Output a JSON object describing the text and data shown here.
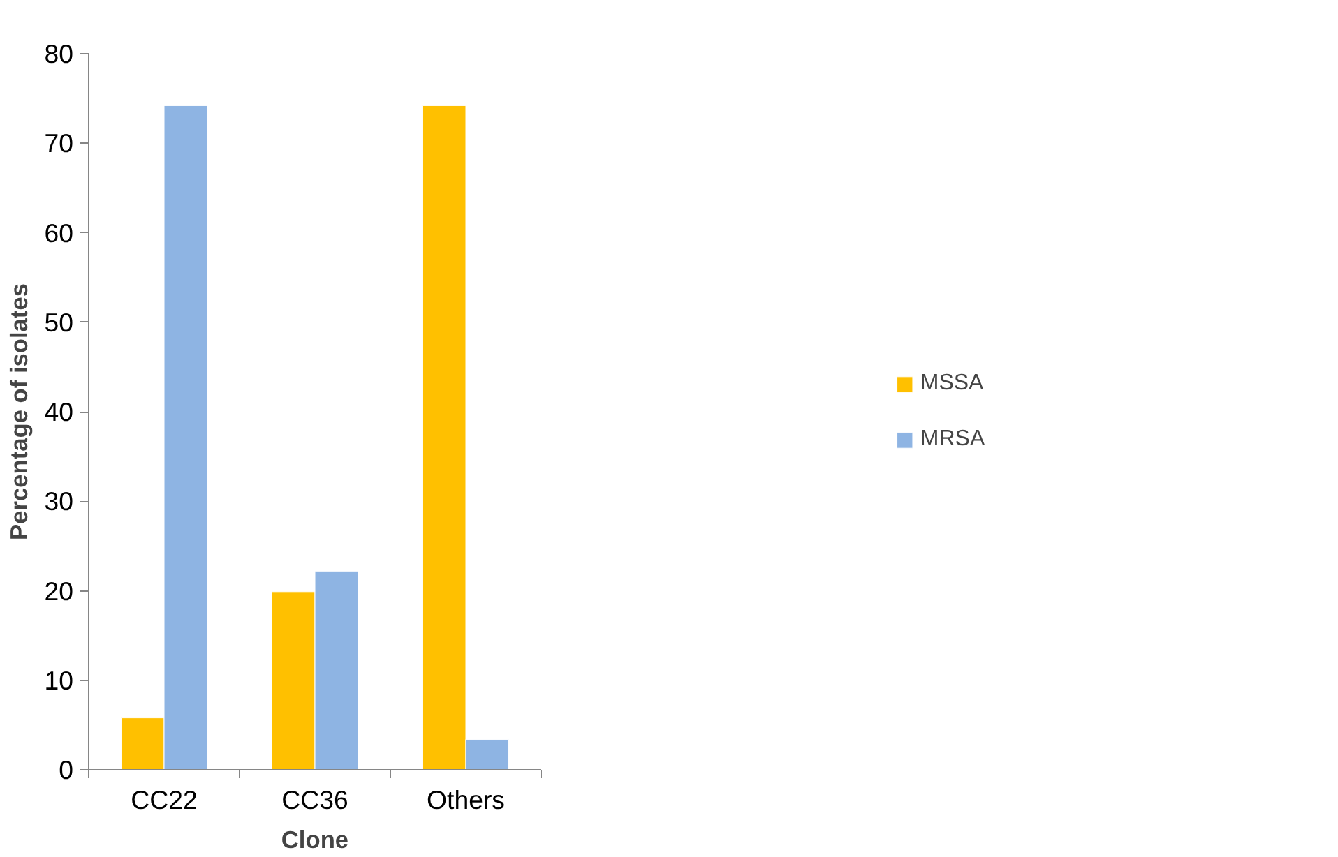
{
  "chart_data": {
    "type": "bar",
    "xlabel": "Clone",
    "ylabel": "Percentage of isolates",
    "categories": [
      "CC22",
      "CC36",
      "Others"
    ],
    "series": [
      {
        "name": "MSSA",
        "color": "#ffc000",
        "values": [
          5.8,
          19.9,
          74.2
        ]
      },
      {
        "name": "MRSA",
        "color": "#8eb4e3",
        "values": [
          74.2,
          22.2,
          3.4
        ]
      }
    ],
    "ylim": [
      0,
      80
    ],
    "yticks": [
      0,
      10,
      20,
      30,
      40,
      50,
      60,
      70,
      80
    ],
    "grid": false,
    "legend": "right"
  }
}
